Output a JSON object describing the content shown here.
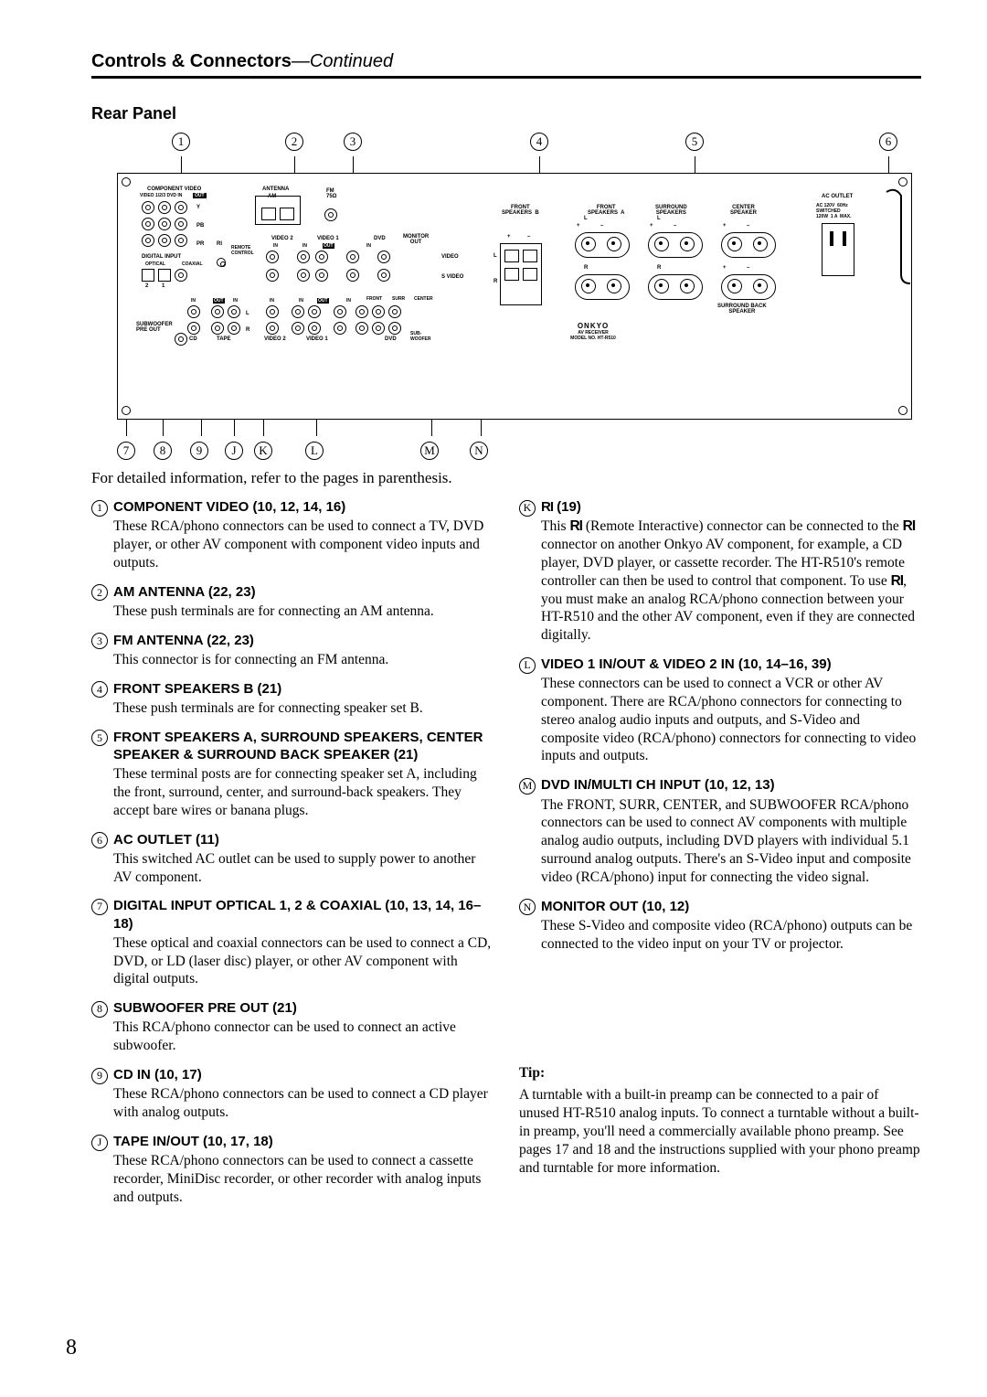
{
  "header": {
    "title": "Controls & Connectors",
    "continued": "—Continued"
  },
  "subhead": "Rear Panel",
  "callouts_top": [
    "1",
    "2",
    "3",
    "4",
    "5",
    "6"
  ],
  "callouts_bottom": [
    "7",
    "8",
    "9",
    "J",
    "K",
    "L",
    "M",
    "N"
  ],
  "diagram_labels": {
    "component_video": "COMPONENT VIDEO",
    "video_src": "VIDEO 1/2/3  DVD IN",
    "out": "OUT",
    "antenna": "ANTENNA",
    "am": "AM",
    "fm": "FM\n75Ω",
    "ri": "RI",
    "remote": "REMOTE\nCONTROL",
    "digital_input": "DIGITAL INPUT",
    "optical": "OPTICAL",
    "coaxial": "COAXIAL",
    "sub_pre": "SUBWOOFER\nPRE OUT",
    "cd": "CD",
    "tape": "TAPE",
    "in": "IN",
    "video2": "VIDEO 2",
    "video1": "VIDEO 1",
    "dvd": "DVD",
    "monitor_out": "MONITOR\nOUT",
    "video": "VIDEO",
    "s_video": "S VIDEO",
    "front_l": "FRONT",
    "surr_l": "SURR",
    "center_l": "CENTER",
    "sub_l": "SUB-\nWOOFER",
    "front_b": "FRONT\nSPEAKERS  B",
    "front_a": "FRONT\nSPEAKERS  A",
    "surround": "SURROUND\nSPEAKERS",
    "center": "CENTER\nSPEAKER",
    "surr_back": "SURROUND BACK\nSPEAKER",
    "ac_outlet": "AC OUTLET",
    "ac_spec": "AC 120V  60Hz\nSWITCHED\n120W  1 A  MAX.",
    "brand": "ONKYO",
    "model": "AV RECEIVER\nMODEL NO. HT-R510",
    "L": "L",
    "R": "R",
    "plus": "+",
    "minus": "–",
    "Y": "Y",
    "PB": "PB",
    "PR": "PR",
    "n1": "1",
    "n2": "2"
  },
  "intro": "For detailed information, refer to the pages in parenthesis.",
  "items_left": [
    {
      "n": "1",
      "title": "COMPONENT VIDEO (10, 12, 14, 16)",
      "text": "These RCA/phono connectors can be used to connect a TV, DVD player, or other AV component with component video inputs and outputs."
    },
    {
      "n": "2",
      "title": "AM ANTENNA (22, 23)",
      "text": "These push terminals are for connecting an AM antenna."
    },
    {
      "n": "3",
      "title": "FM ANTENNA (22, 23)",
      "text": "This connector is for connecting an FM antenna."
    },
    {
      "n": "4",
      "title": "FRONT SPEAKERS B (21)",
      "text": "These push terminals are for connecting speaker set B."
    },
    {
      "n": "5",
      "title": "FRONT SPEAKERS A, SURROUND SPEAKERS, CENTER SPEAKER & SURROUND BACK SPEAKER (21)",
      "text": "These terminal posts are for connecting speaker set A, including the front, surround, center, and surround-back speakers. They accept bare wires or banana plugs."
    },
    {
      "n": "6",
      "title": "AC OUTLET (11)",
      "text": "This switched AC outlet can be used to supply power to another AV component."
    },
    {
      "n": "7",
      "title": "DIGITAL INPUT OPTICAL 1, 2 & COAXIAL (10, 13, 14, 16–18)",
      "text": "These optical and coaxial connectors can be used to connect a CD, DVD, or LD (laser disc) player, or other AV component with digital outputs."
    },
    {
      "n": "8",
      "title": "SUBWOOFER PRE OUT (21)",
      "text": "This RCA/phono connector can be used to connect an active subwoofer."
    },
    {
      "n": "9",
      "title": "CD IN (10, 17)",
      "text": "These RCA/phono connectors can be used to connect a CD player with analog outputs."
    },
    {
      "n": "J",
      "title": "TAPE IN/OUT (10, 17, 18)",
      "text": "These RCA/phono connectors can be used to connect a cassette recorder, MiniDisc recorder, or other recorder with analog inputs and outputs."
    }
  ],
  "items_right": [
    {
      "n": "K",
      "title_ri": true,
      "title": " (19)",
      "text": "This RI (Remote Interactive) connector can be connected to the RI connector on another Onkyo AV component, for example, a CD player, DVD player, or cassette recorder. The HT-R510's remote controller can then be used to control that component. To use RI, you must make an analog RCA/phono connection between your HT-R510 and the other AV component, even if they are connected digitally."
    },
    {
      "n": "L",
      "title": "VIDEO 1 IN/OUT & VIDEO 2 IN (10, 14–16, 39)",
      "text": "These connectors can be used to connect a VCR or other AV component. There are RCA/phono connectors for connecting to stereo analog audio inputs and outputs, and S-Video and composite video (RCA/phono) connectors for connecting to video inputs and outputs."
    },
    {
      "n": "M",
      "title": "DVD IN/MULTI CH INPUT (10, 12, 13)",
      "text": "The FRONT, SURR, CENTER, and SUBWOOFER RCA/phono connectors can be used to connect AV components with multiple analog audio outputs, including DVD players with individual 5.1 surround analog outputs. There's an S-Video input and composite video (RCA/phono) input for connecting the video signal."
    },
    {
      "n": "N",
      "title": "MONITOR OUT (10, 12)",
      "text": "These S-Video and composite video (RCA/phono) outputs can be connected to the video input on your TV or projector."
    }
  ],
  "tip": {
    "label": "Tip:",
    "text": "A turntable with a built-in preamp can be connected to a pair of unused HT-R510 analog inputs. To connect a turntable without a built-in preamp, you'll need a commercially available phono preamp. See pages 17 and 18 and the instructions supplied with your phono preamp and turntable for more information."
  },
  "page_number": "8",
  "ri_glyph": "RI"
}
